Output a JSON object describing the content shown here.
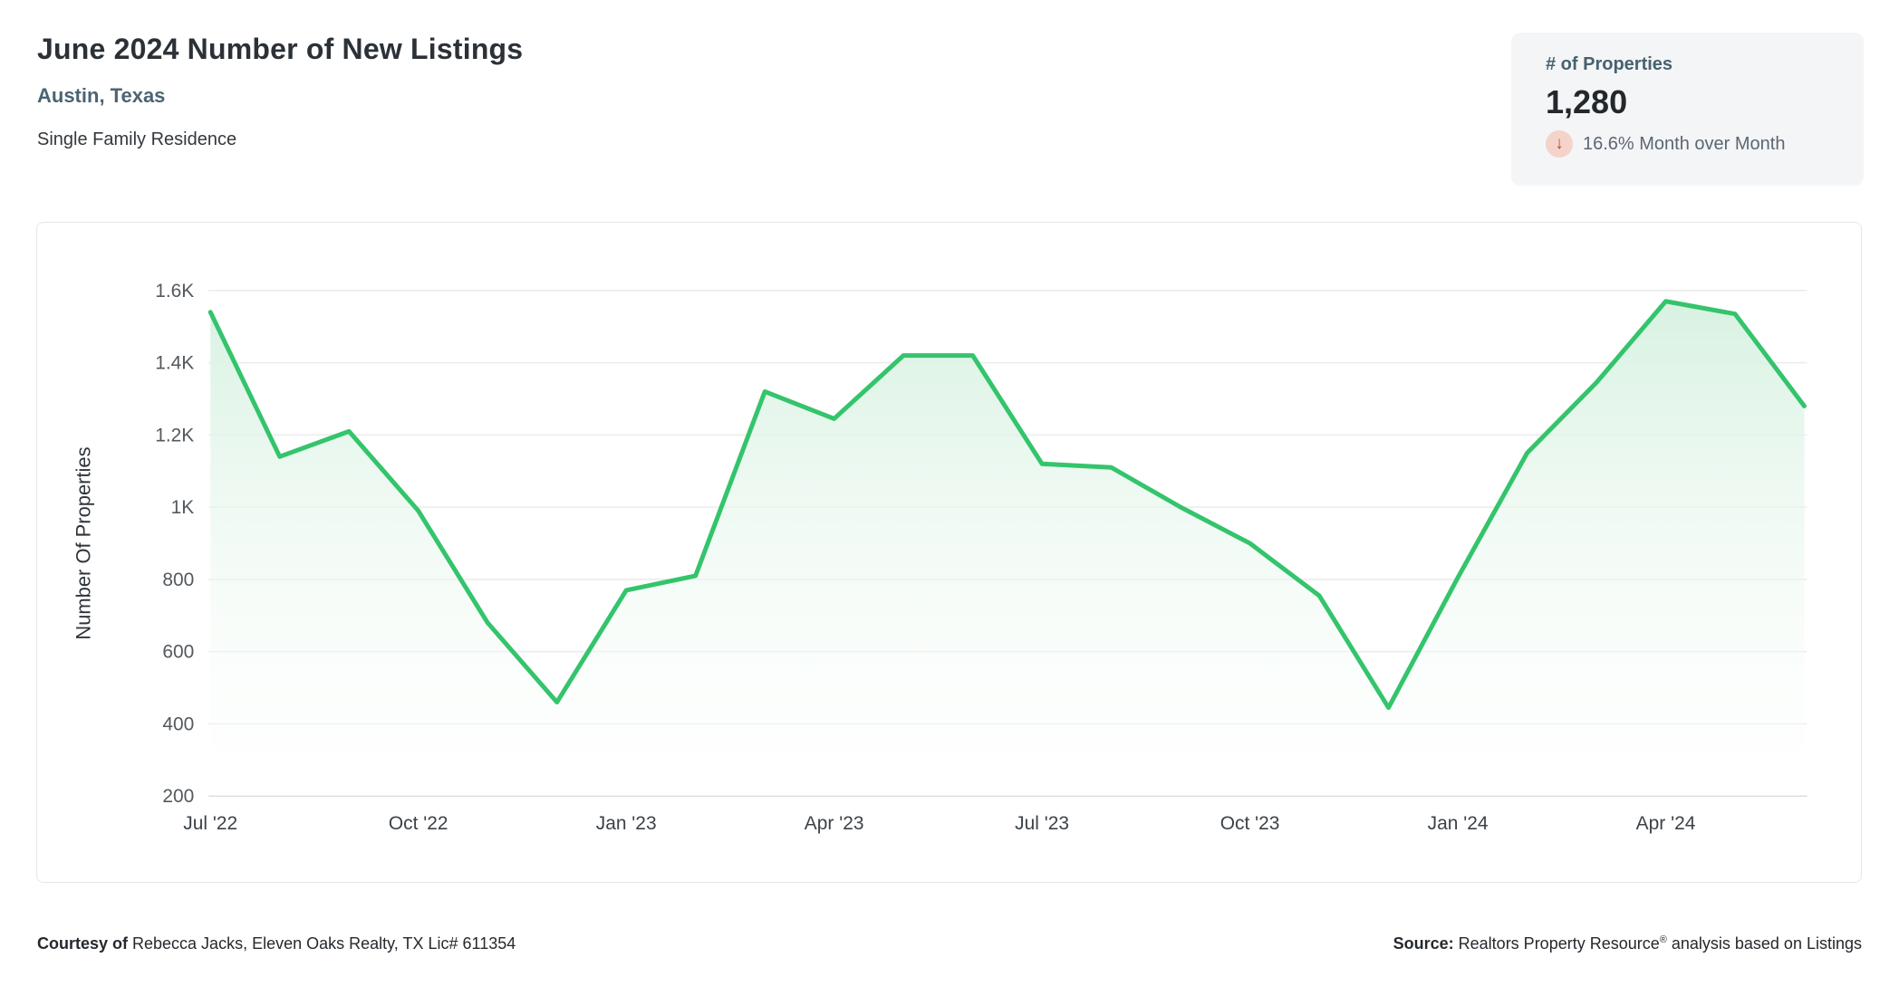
{
  "header": {
    "title": "June 2024 Number of New Listings",
    "location": "Austin, Texas",
    "property_type": "Single Family Residence"
  },
  "stat_card": {
    "label": "# of Properties",
    "value": "1,280",
    "delta_direction": "down",
    "delta_arrow_icon": "arrow-down",
    "delta_text": "16.6% Month over Month",
    "arrow_color": "#bf4635",
    "arrow_bg_color": "#f5d3c9"
  },
  "chart_data": {
    "type": "area",
    "title": "",
    "xlabel": "",
    "ylabel": "Number Of Properties",
    "x": [
      "Jul '22",
      "Aug '22",
      "Sep '22",
      "Oct '22",
      "Nov '22",
      "Dec '22",
      "Jan '23",
      "Feb '23",
      "Mar '23",
      "Apr '23",
      "May '23",
      "Jun '23",
      "Jul '23",
      "Aug '23",
      "Sep '23",
      "Oct '23",
      "Nov '23",
      "Dec '23",
      "Jan '24",
      "Feb '24",
      "Mar '24",
      "Apr '24",
      "May '24",
      "Jun '24"
    ],
    "values": [
      1540,
      1140,
      1210,
      990,
      680,
      460,
      770,
      810,
      1320,
      1245,
      1420,
      1420,
      1120,
      1110,
      1000,
      900,
      755,
      445,
      805,
      1150,
      1345,
      1570,
      1535,
      1280
    ],
    "x_tick_labels": [
      "Jul '22",
      "Oct '22",
      "Jan '23",
      "Apr '23",
      "Jul '23",
      "Oct '23",
      "Jan '24",
      "Apr '24"
    ],
    "x_tick_indices": [
      0,
      3,
      6,
      9,
      12,
      15,
      18,
      21
    ],
    "y_ticks": [
      200,
      400,
      600,
      800,
      1000,
      1200,
      1400,
      1600
    ],
    "y_tick_labels": [
      "200",
      "400",
      "600",
      "800",
      "1K",
      "1.2K",
      "1.4K",
      "1.6K"
    ],
    "ylim": [
      200,
      1600
    ],
    "grid": "horizontal",
    "legend": "none",
    "line_color": "#34c46c",
    "fill_top_color": "#d6f1e0",
    "fill_bottom_color": "#ffffff",
    "grid_color": "#ececec",
    "axis_line_color": "#d9dbdd",
    "tick_label_color": "#54595e",
    "axis_title_color": "#2f343a"
  },
  "footer": {
    "courtesy_label": "Courtesy of",
    "courtesy_text": " Rebecca Jacks, Eleven Oaks Realty, TX Lic# 611354",
    "source_label": "Source:",
    "source_text_main": " Realtors Property Resource",
    "source_reg": "®",
    "source_text_suffix": " analysis based on Listings"
  }
}
